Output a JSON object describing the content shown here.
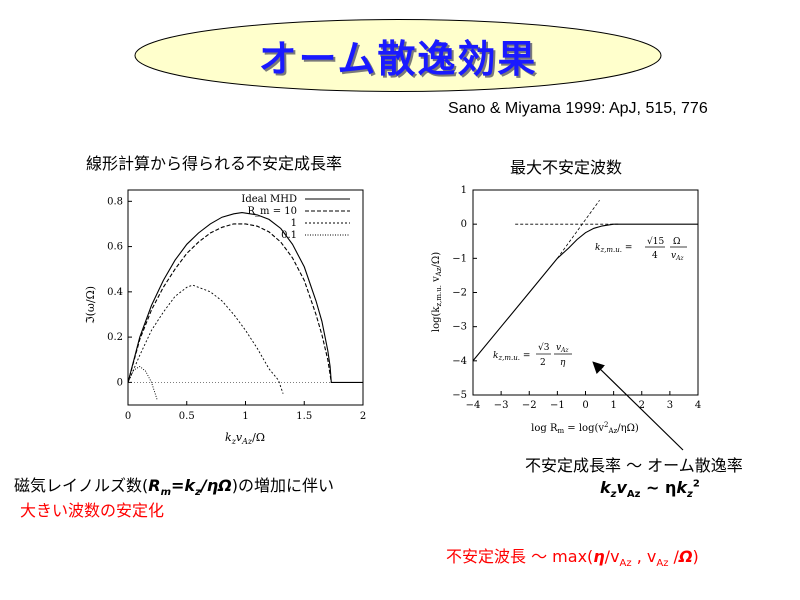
{
  "slide": {
    "title": "オーム散逸効果",
    "citation": "Sano & Miyama 1999: ApJ, 515, 776",
    "left_heading": "線形計算から得られる不安定成長率",
    "right_heading": "最大不安定波数",
    "bottom_left": {
      "line1_prefix": "磁気レイノルズ数(",
      "R": "R",
      "R_sub": "m",
      "eq": "=k",
      "k_sub": "z",
      "slash": "/",
      "eta": "η",
      "omega": "Ω",
      "line1_suffix": ")の増加に伴い",
      "line2": "大きい波数の安定化"
    },
    "bottom_right": {
      "line1": "不安定成長率 〜 オーム散逸率",
      "k": "k",
      "k_sub": "z",
      "v": "v",
      "v_sub": "Az",
      "approx": " ~ η",
      "k2": "k",
      "k2_sub": "z",
      "k2_sup": "2"
    },
    "wavelength": {
      "prefix": "不安定波長 〜 max(",
      "eta": "η",
      "slash1": "/v",
      "sub1": "Az",
      "comma": " , v",
      "sub2": "Az",
      "slash2": " /",
      "omega": "Ω",
      "close": ")"
    }
  },
  "colors": {
    "title": "#1a1aff",
    "title_fill": "#ffffcc",
    "accent_red": "#ff0000"
  },
  "chart_data": [
    {
      "type": "line",
      "xlabel": "k_z v_Az/Ω",
      "ylabel": "ℑ(ω/Ω)",
      "xlim": [
        0,
        2
      ],
      "ylim": [
        -0.1,
        0.85
      ],
      "xticks": [
        "0",
        "0.5",
        "1",
        "1.5",
        "2"
      ],
      "yticks": [
        "0",
        "0.2",
        "0.4",
        "0.6",
        "0.8"
      ],
      "legend": [
        "Ideal MHD",
        "R_m = 10",
        "1",
        "0.1"
      ],
      "legend_placement": "top-right",
      "series": [
        {
          "name": "Ideal MHD",
          "x": [
            0,
            0.1,
            0.2,
            0.3,
            0.4,
            0.5,
            0.6,
            0.7,
            0.8,
            0.9,
            0.97,
            1.1,
            1.2,
            1.3,
            1.4,
            1.5,
            1.6,
            1.65,
            1.7,
            1.72,
            1.73
          ],
          "y": [
            0,
            0.2,
            0.34,
            0.45,
            0.54,
            0.61,
            0.66,
            0.7,
            0.73,
            0.745,
            0.75,
            0.74,
            0.72,
            0.68,
            0.61,
            0.51,
            0.36,
            0.27,
            0.14,
            0.07,
            0
          ]
        },
        {
          "name": "R_m = 10",
          "x": [
            0,
            0.1,
            0.2,
            0.3,
            0.4,
            0.5,
            0.6,
            0.7,
            0.8,
            0.9,
            1.0,
            1.1,
            1.2,
            1.3,
            1.4,
            1.5,
            1.6,
            1.65,
            1.7,
            1.73
          ],
          "y": [
            0,
            0.19,
            0.32,
            0.42,
            0.5,
            0.57,
            0.62,
            0.66,
            0.685,
            0.7,
            0.7,
            0.69,
            0.665,
            0.62,
            0.55,
            0.45,
            0.3,
            0.21,
            0.1,
            0
          ]
        },
        {
          "name": "1",
          "x": [
            0,
            0.1,
            0.2,
            0.3,
            0.4,
            0.5,
            0.55,
            0.6,
            0.7,
            0.8,
            0.9,
            1.0,
            1.1,
            1.2,
            1.28,
            1.32
          ],
          "y": [
            0,
            0.12,
            0.23,
            0.31,
            0.38,
            0.42,
            0.43,
            0.42,
            0.4,
            0.36,
            0.3,
            0.23,
            0.15,
            0.06,
            0.01,
            -0.05
          ]
        },
        {
          "name": "0.1",
          "x": [
            0,
            0.05,
            0.1,
            0.15,
            0.2,
            0.25
          ],
          "y": [
            0,
            0.055,
            0.07,
            0.05,
            0.0,
            -0.08
          ]
        }
      ]
    },
    {
      "type": "line",
      "xlabel": "log R_m = log(v_Az^2/ηΩ)",
      "ylabel": "log(k_z,m.u. v_Az/Ω)",
      "xlim": [
        -4,
        4
      ],
      "ylim": [
        -5,
        1
      ],
      "xticks": [
        "−4",
        "−3",
        "−2",
        "−1",
        "0",
        "1",
        "2",
        "3",
        "4"
      ],
      "yticks": [
        "−5",
        "−4",
        "−3",
        "−2",
        "−1",
        "0",
        "1"
      ],
      "annotations": [
        "k_z,m.u. = (√15/4) Ω/v_Az",
        "k_z,m.u. = (√3/2) v_Az/η"
      ],
      "series": [
        {
          "name": "",
          "x": [
            -4,
            -3,
            -2,
            -1,
            -0.6,
            -0.3,
            0,
            0.3,
            0.6,
            1.0,
            1.5,
            2,
            3,
            4
          ],
          "y": [
            -4,
            -3,
            -2,
            -1,
            -0.7,
            -0.45,
            -0.25,
            -0.12,
            -0.05,
            0,
            0,
            0,
            0,
            0
          ]
        }
      ]
    }
  ]
}
